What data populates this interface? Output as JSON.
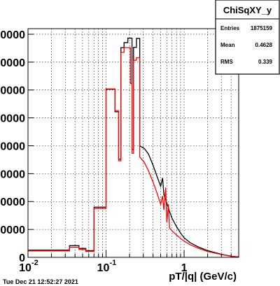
{
  "stats_box": {
    "title": "ChiSqXY_y",
    "entries_label": "Entries",
    "entries_value": "1875159",
    "mean_label": "Mean",
    "mean_value": "0.4628",
    "rms_label": "RMS",
    "rms_value": "0.339"
  },
  "timestamp": "Tue Dec 21 12:52:27 2021",
  "chart_data": {
    "type": "line",
    "title": "",
    "xlabel": "pT/|q| (GeV/c)",
    "ylabel": "",
    "x_scale": "log",
    "xlim": [
      0.01,
      5.0
    ],
    "ylim": [
      0,
      82000
    ],
    "x_tick_labels": [
      "10",
      "-2",
      "10",
      "-1",
      "1"
    ],
    "y_tick_labels": [
      "0",
      "0000",
      "0000",
      "0000",
      "0000",
      "0000",
      "0000",
      "0000",
      "00000"
    ],
    "y_ticks": [
      0,
      10000,
      20000,
      30000,
      40000,
      50000,
      60000,
      70000,
      80000
    ],
    "grid": true,
    "series": [
      {
        "color": "#000000",
        "points": [
          [
            0.01,
            2600
          ],
          [
            0.034,
            2600
          ],
          [
            0.034,
            4200
          ],
          [
            0.045,
            4200
          ],
          [
            0.045,
            3200
          ],
          [
            0.055,
            3200
          ],
          [
            0.055,
            2400
          ],
          [
            0.07,
            2400
          ],
          [
            0.07,
            18000
          ],
          [
            0.1,
            18000
          ],
          [
            0.1,
            60300
          ],
          [
            0.13,
            60300
          ],
          [
            0.13,
            52200
          ],
          [
            0.145,
            52200
          ],
          [
            0.145,
            35200
          ],
          [
            0.155,
            35200
          ],
          [
            0.155,
            75200
          ],
          [
            0.17,
            75200
          ],
          [
            0.17,
            77000
          ],
          [
            0.19,
            77000
          ],
          [
            0.19,
            78600
          ],
          [
            0.205,
            78600
          ],
          [
            0.205,
            78600
          ],
          [
            0.215,
            78600
          ],
          [
            0.215,
            38700
          ],
          [
            0.225,
            38700
          ],
          [
            0.225,
            75300
          ],
          [
            0.245,
            75300
          ],
          [
            0.245,
            78500
          ],
          [
            0.27,
            78500
          ],
          [
            0.27,
            40000
          ],
          [
            0.31,
            39000
          ],
          [
            0.35,
            37000
          ],
          [
            0.4,
            33000
          ],
          [
            0.45,
            29000
          ],
          [
            0.5,
            25500
          ],
          [
            0.53,
            28500
          ],
          [
            0.55,
            22500
          ],
          [
            0.6,
            19500
          ],
          [
            0.65,
            16500
          ],
          [
            0.7,
            14000
          ],
          [
            0.8,
            11000
          ],
          [
            0.9,
            8700
          ],
          [
            1.0,
            7000
          ],
          [
            1.2,
            5200
          ],
          [
            1.5,
            3800
          ],
          [
            2.0,
            2400
          ],
          [
            3.0,
            1100
          ],
          [
            4.0,
            400
          ],
          [
            5.0,
            150
          ]
        ]
      },
      {
        "color": "#ff0000",
        "points": [
          [
            0.01,
            2300
          ],
          [
            0.034,
            2300
          ],
          [
            0.034,
            3600
          ],
          [
            0.045,
            3600
          ],
          [
            0.045,
            2800
          ],
          [
            0.055,
            2800
          ],
          [
            0.055,
            2100
          ],
          [
            0.07,
            2100
          ],
          [
            0.07,
            17500
          ],
          [
            0.1,
            17500
          ],
          [
            0.1,
            60400
          ],
          [
            0.13,
            60400
          ],
          [
            0.13,
            52600
          ],
          [
            0.145,
            52600
          ],
          [
            0.145,
            34600
          ],
          [
            0.155,
            34600
          ],
          [
            0.155,
            73500
          ],
          [
            0.17,
            73500
          ],
          [
            0.17,
            75200
          ],
          [
            0.19,
            75200
          ],
          [
            0.19,
            75200
          ],
          [
            0.205,
            75200
          ],
          [
            0.205,
            62300
          ],
          [
            0.215,
            62300
          ],
          [
            0.215,
            37300
          ],
          [
            0.225,
            37300
          ],
          [
            0.225,
            70700
          ],
          [
            0.245,
            70700
          ],
          [
            0.245,
            71600
          ],
          [
            0.27,
            71600
          ],
          [
            0.27,
            36000
          ],
          [
            0.31,
            34000
          ],
          [
            0.35,
            31000
          ],
          [
            0.4,
            27000
          ],
          [
            0.45,
            23000
          ],
          [
            0.5,
            19000
          ],
          [
            0.53,
            22000
          ],
          [
            0.55,
            17000
          ],
          [
            0.58,
            25000
          ],
          [
            0.6,
            12500
          ],
          [
            0.63,
            19000
          ],
          [
            0.65,
            10500
          ],
          [
            0.7,
            9500
          ],
          [
            0.8,
            8000
          ],
          [
            0.9,
            6800
          ],
          [
            1.0,
            5800
          ],
          [
            1.2,
            4500
          ],
          [
            1.5,
            3300
          ],
          [
            2.0,
            2100
          ],
          [
            3.0,
            1000
          ],
          [
            4.0,
            350
          ],
          [
            5.0,
            120
          ]
        ]
      }
    ]
  }
}
